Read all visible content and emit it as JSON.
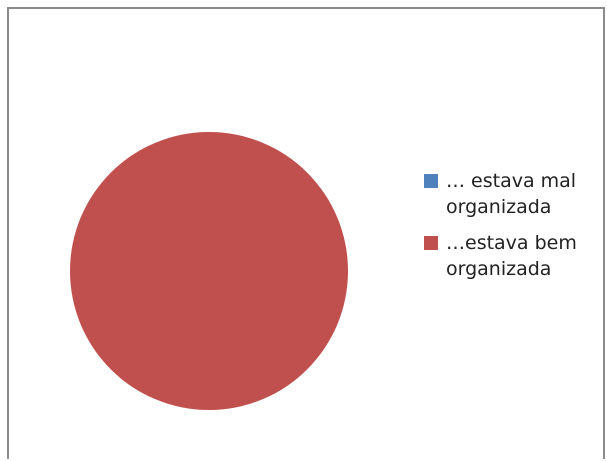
{
  "chart_data": {
    "type": "pie",
    "title": "",
    "categories": [
      "… estava mal organizada",
      "…estava bem organizada"
    ],
    "values": [
      0,
      100
    ],
    "colors": [
      "#4f81bd",
      "#c0504d"
    ],
    "legend_position": "right"
  }
}
